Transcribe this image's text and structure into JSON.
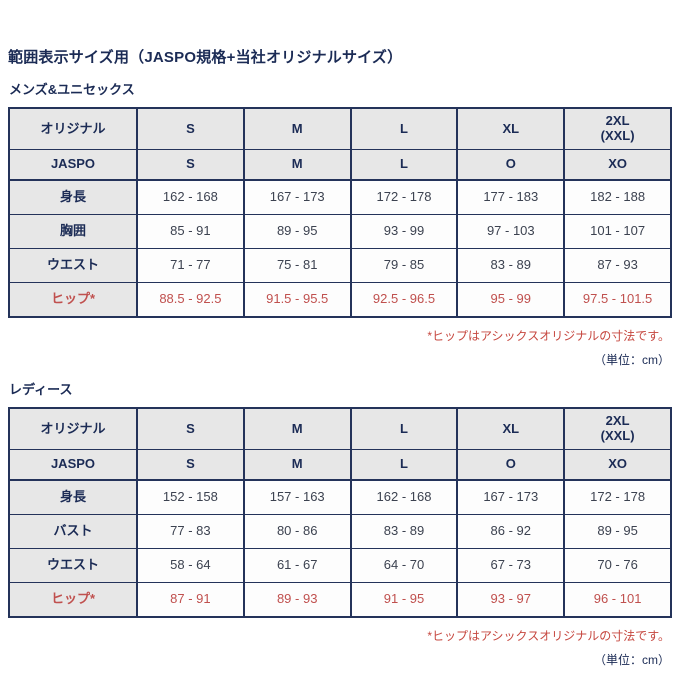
{
  "page": {
    "title": "範囲表示サイズ用（JASPO規格+当社オリジナルサイズ）"
  },
  "colors": {
    "navy_text": "#1b2b55",
    "table_border": "#24335a",
    "header_bg": "#e7e7e7",
    "cell_bg": "#fdfdfd",
    "data_text": "#3c4250",
    "red_text": "#c0504e"
  },
  "tables": [
    {
      "section_label": "メンズ&ユニセックス",
      "header_rows": [
        {
          "label": "オリジナル",
          "values": [
            "S",
            "M",
            "L",
            "XL",
            "2XL\n(XXL)"
          ]
        },
        {
          "label": "JASPO",
          "values": [
            "S",
            "M",
            "L",
            "O",
            "XO"
          ]
        }
      ],
      "rows": [
        {
          "label": "身長",
          "values": [
            "162 - 168",
            "167 - 173",
            "172 - 178",
            "177 - 183",
            "182 - 188"
          ]
        },
        {
          "label": "胸囲",
          "values": [
            "85 - 91",
            "89 - 95",
            "93 - 99",
            "97 - 103",
            "101 - 107"
          ]
        },
        {
          "label": "ウエスト",
          "values": [
            "71 - 77",
            "75 - 81",
            "79 - 85",
            "83 - 89",
            "87 - 93"
          ]
        },
        {
          "label": "ヒップ*",
          "values": [
            "88.5 - 92.5",
            "91.5 - 95.5",
            "92.5 - 96.5",
            "95 - 99",
            "97.5 - 101.5"
          ]
        }
      ],
      "footnote": "*ヒップはアシックスオリジナルの寸法です。",
      "unit_note": "（単位：cm）"
    },
    {
      "section_label": "レディース",
      "header_rows": [
        {
          "label": "オリジナル",
          "values": [
            "S",
            "M",
            "L",
            "XL",
            "2XL\n(XXL)"
          ]
        },
        {
          "label": "JASPO",
          "values": [
            "S",
            "M",
            "L",
            "O",
            "XO"
          ]
        }
      ],
      "rows": [
        {
          "label": "身長",
          "values": [
            "152 - 158",
            "157 - 163",
            "162 - 168",
            "167 - 173",
            "172 - 178"
          ]
        },
        {
          "label": "バスト",
          "values": [
            "77 - 83",
            "80 - 86",
            "83 - 89",
            "86 - 92",
            "89 - 95"
          ]
        },
        {
          "label": "ウエスト",
          "values": [
            "58 - 64",
            "61 - 67",
            "64 - 70",
            "67 - 73",
            "70 - 76"
          ]
        },
        {
          "label": "ヒップ*",
          "values": [
            "87 - 91",
            "89 - 93",
            "91 - 95",
            "93 - 97",
            "96 - 101"
          ]
        }
      ],
      "footnote": "*ヒップはアシックスオリジナルの寸法です。",
      "unit_note": "（単位：cm）"
    }
  ]
}
